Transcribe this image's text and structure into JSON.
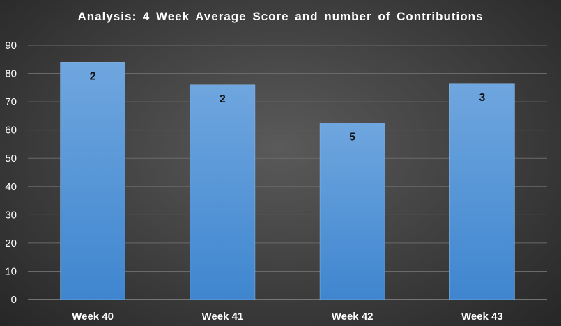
{
  "chart_data": {
    "type": "bar",
    "title": "Analysis:  4 Week Average Score and number of Contributions",
    "xlabel": "",
    "ylabel": "",
    "categories": [
      "Week 40",
      "Week 41",
      "Week 42",
      "Week 43"
    ],
    "series": [
      {
        "values": [
          84,
          76,
          62.5,
          76.5
        ],
        "data_labels": [
          "2",
          "2",
          "5",
          "3"
        ]
      }
    ],
    "ylim": [
      0,
      90
    ],
    "yticks": [
      "0",
      "10",
      "20",
      "30",
      "40",
      "50",
      "60",
      "70",
      "80",
      "90"
    ],
    "grid": true,
    "legend": "none",
    "colors": {
      "bar_top": "#6fa6df",
      "bar_bottom": "#3f86cf",
      "grid": "#6a6a6a",
      "axis": "#8a8a8a"
    }
  }
}
